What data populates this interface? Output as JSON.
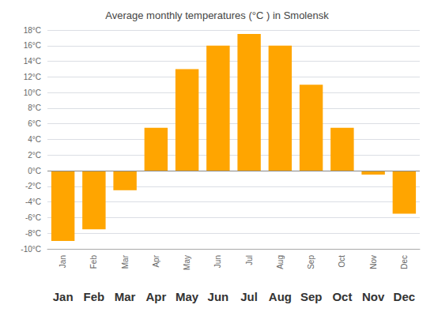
{
  "chart_data": {
    "type": "bar",
    "title": "Average monthly temperatures (°C ) in Smolensk",
    "categories": [
      "Jan",
      "Feb",
      "Mar",
      "Apr",
      "May",
      "Jun",
      "Jul",
      "Aug",
      "Sep",
      "Oct",
      "Nov",
      "Dec"
    ],
    "values": [
      -9.0,
      -7.5,
      -2.5,
      5.5,
      13.0,
      16.0,
      17.5,
      16.0,
      11.0,
      5.5,
      -0.5,
      -5.5
    ],
    "color": "#FFA500",
    "ylim": [
      -10,
      18
    ],
    "yticks": [
      {
        "value": -10,
        "label": "-10°C"
      },
      {
        "value": -8,
        "label": "-8°C"
      },
      {
        "value": -6,
        "label": "-6°C"
      },
      {
        "value": -4,
        "label": "-4°C"
      },
      {
        "value": -2,
        "label": "-2°C"
      },
      {
        "value": 0,
        "label": "0°C"
      },
      {
        "value": 2,
        "label": "2°C"
      },
      {
        "value": 4,
        "label": "4°C"
      },
      {
        "value": 6,
        "label": "6°C"
      },
      {
        "value": 8,
        "label": "8°C"
      },
      {
        "value": 10,
        "label": "10°C"
      },
      {
        "value": 12,
        "label": "12°C"
      },
      {
        "value": 14,
        "label": "14°C"
      },
      {
        "value": 16,
        "label": "16°C"
      },
      {
        "value": 18,
        "label": "18°C"
      }
    ],
    "grid": true
  }
}
